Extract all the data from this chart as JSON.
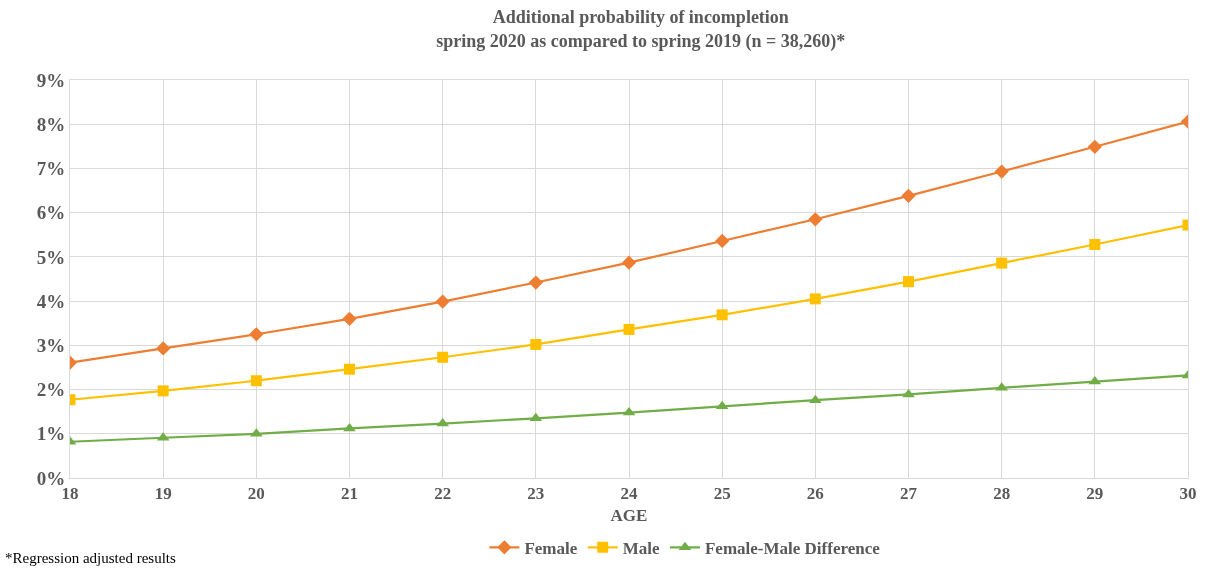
{
  "chart_data": {
    "type": "line",
    "title": "Additional probability of incompletion\nspring 2020 as compared to spring 2019 (n = 38,260)*",
    "xlabel": "AGE",
    "annotations": [
      "*Regression adjusted results"
    ],
    "x": [
      18,
      19,
      20,
      21,
      22,
      23,
      24,
      25,
      26,
      27,
      28,
      29,
      30
    ],
    "series": [
      {
        "name": "Female",
        "color": "#ed7d31",
        "marker": "diamond",
        "values": [
          2.61,
          2.93,
          3.25,
          3.6,
          3.99,
          4.42,
          4.87,
          5.36,
          5.85,
          6.38,
          6.93,
          7.49,
          8.06
        ]
      },
      {
        "name": "Male",
        "color": "#ffc000",
        "marker": "square",
        "values": [
          1.77,
          1.97,
          2.2,
          2.46,
          2.73,
          3.02,
          3.36,
          3.69,
          4.05,
          4.44,
          4.86,
          5.28,
          5.72
        ]
      },
      {
        "name": "Female-Male Difference",
        "color": "#70ad47",
        "marker": "triangle",
        "values": [
          0.82,
          0.91,
          1.0,
          1.12,
          1.23,
          1.35,
          1.48,
          1.62,
          1.76,
          1.89,
          2.04,
          2.18,
          2.32
        ]
      }
    ],
    "xlim": [
      18,
      30
    ],
    "xticks": [
      18,
      19,
      20,
      21,
      22,
      23,
      24,
      25,
      26,
      27,
      28,
      29,
      30
    ],
    "ylim": [
      0,
      9
    ],
    "yticks": [
      {
        "value": 0,
        "label": "0%"
      },
      {
        "value": 1,
        "label": "1%"
      },
      {
        "value": 2,
        "label": "2%"
      },
      {
        "value": 3,
        "label": "3%"
      },
      {
        "value": 4,
        "label": "4%"
      },
      {
        "value": 5,
        "label": "5%"
      },
      {
        "value": 6,
        "label": "6%"
      },
      {
        "value": 7,
        "label": "7%"
      },
      {
        "value": 8,
        "label": "8%"
      },
      {
        "value": 9,
        "label": "9%"
      }
    ],
    "grid": true,
    "legend": "bottom",
    "line_style": "solid"
  }
}
